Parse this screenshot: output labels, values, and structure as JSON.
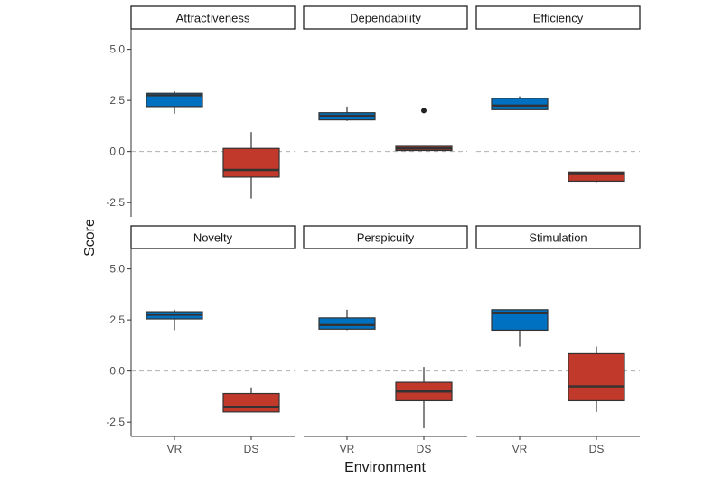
{
  "chart_data": {
    "type": "boxplot",
    "xlabel": "Environment",
    "ylabel": "Score",
    "categories": [
      "VR",
      "DS"
    ],
    "ylim": [
      -3.2,
      6.0
    ],
    "yticks": [
      -2.5,
      0.0,
      2.5,
      5.0
    ],
    "ytick_labels": [
      "-2.5",
      "0.0",
      "2.5",
      "5.0"
    ],
    "reference_line": 0.0,
    "colors": {
      "VR": "#0070c0",
      "DS": "#c0392b"
    },
    "panels": [
      {
        "title": "Attractiveness",
        "boxes": [
          {
            "category": "VR",
            "min": 1.85,
            "q1": 2.2,
            "median": 2.75,
            "q3": 2.85,
            "max": 2.95,
            "outliers": []
          },
          {
            "category": "DS",
            "min": -2.3,
            "q1": -1.25,
            "median": -0.9,
            "q3": 0.15,
            "max": 0.95,
            "outliers": []
          }
        ]
      },
      {
        "title": "Dependability",
        "boxes": [
          {
            "category": "VR",
            "min": 1.5,
            "q1": 1.55,
            "median": 1.75,
            "q3": 1.9,
            "max": 2.2,
            "outliers": []
          },
          {
            "category": "DS",
            "min": 0.05,
            "q1": 0.05,
            "median": 0.15,
            "q3": 0.25,
            "max": 0.25,
            "outliers": [
              2.0
            ]
          }
        ]
      },
      {
        "title": "Efficiency",
        "boxes": [
          {
            "category": "VR",
            "min": 2.05,
            "q1": 2.05,
            "median": 2.25,
            "q3": 2.6,
            "max": 2.7,
            "outliers": []
          },
          {
            "category": "DS",
            "min": -1.5,
            "q1": -1.45,
            "median": -1.1,
            "q3": -1.0,
            "max": -1.0,
            "outliers": []
          }
        ]
      },
      {
        "title": "Novelty",
        "boxes": [
          {
            "category": "VR",
            "min": 2.0,
            "q1": 2.55,
            "median": 2.75,
            "q3": 2.9,
            "max": 3.0,
            "outliers": []
          },
          {
            "category": "DS",
            "min": -2.0,
            "q1": -2.0,
            "median": -1.75,
            "q3": -1.1,
            "max": -0.8,
            "outliers": []
          }
        ]
      },
      {
        "title": "Perspicuity",
        "boxes": [
          {
            "category": "VR",
            "min": 2.0,
            "q1": 2.05,
            "median": 2.25,
            "q3": 2.6,
            "max": 3.0,
            "outliers": []
          },
          {
            "category": "DS",
            "min": -2.8,
            "q1": -1.45,
            "median": -1.0,
            "q3": -0.55,
            "max": 0.2,
            "outliers": []
          }
        ]
      },
      {
        "title": "Stimulation",
        "boxes": [
          {
            "category": "VR",
            "min": 1.2,
            "q1": 2.0,
            "median": 2.85,
            "q3": 3.0,
            "max": 3.0,
            "outliers": []
          },
          {
            "category": "DS",
            "min": -2.0,
            "q1": -1.45,
            "median": -0.75,
            "q3": 0.85,
            "max": 1.2,
            "outliers": []
          }
        ]
      }
    ]
  }
}
